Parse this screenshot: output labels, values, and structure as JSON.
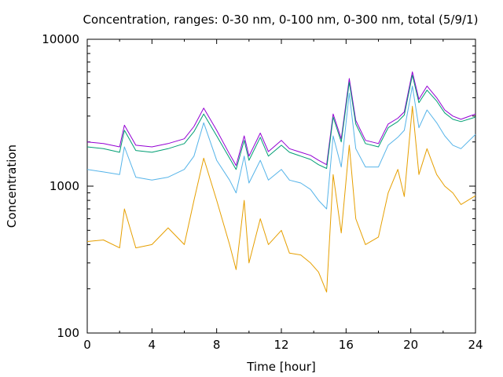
{
  "chart_data": {
    "type": "line",
    "title": "Concentration, ranges: 0-30 nm, 0-100 nm, 0-300 nm, total (5/9/1)",
    "xlabel": "Time [hour]",
    "ylabel": "Concentration",
    "xlim": [
      0,
      24
    ],
    "ylim": [
      100,
      10000
    ],
    "yscale": "log",
    "grid": false,
    "legend": "none",
    "x_ticks": [
      "0",
      "4",
      "8",
      "12",
      "16",
      "20",
      "24"
    ],
    "y_ticks": [
      "100",
      "1000",
      "10000"
    ],
    "x": [
      0,
      1,
      2,
      2.3,
      3,
      4,
      5,
      6,
      6.6,
      7.2,
      8,
      8.8,
      9.2,
      9.7,
      10,
      10.7,
      11.2,
      12,
      12.5,
      13.2,
      13.8,
      14.3,
      14.8,
      15.2,
      15.7,
      16.2,
      16.6,
      17.2,
      18,
      18.6,
      19.2,
      19.6,
      20.1,
      20.5,
      21,
      21.6,
      22.1,
      22.6,
      23.1,
      24
    ],
    "series": [
      {
        "color": "#9400d3",
        "values": [
          2000,
          1950,
          1850,
          2600,
          1900,
          1850,
          1950,
          2100,
          2550,
          3400,
          2400,
          1650,
          1380,
          2200,
          1600,
          2300,
          1720,
          2050,
          1800,
          1700,
          1620,
          1500,
          1400,
          3100,
          2100,
          5400,
          2800,
          2050,
          1950,
          2650,
          2900,
          3200,
          6000,
          3900,
          4800,
          4000,
          3300,
          3000,
          2850,
          3100
        ]
      },
      {
        "color": "#009e73",
        "values": [
          1850,
          1800,
          1700,
          2400,
          1750,
          1700,
          1800,
          1950,
          2350,
          3100,
          2200,
          1550,
          1300,
          2050,
          1500,
          2150,
          1600,
          1900,
          1700,
          1600,
          1520,
          1400,
          1320,
          2950,
          2000,
          5100,
          2650,
          1950,
          1850,
          2500,
          2750,
          3050,
          5700,
          3700,
          4500,
          3800,
          3150,
          2850,
          2750,
          2950
        ]
      },
      {
        "color": "#56b4e9",
        "values": [
          1300,
          1250,
          1200,
          1850,
          1150,
          1100,
          1150,
          1300,
          1600,
          2700,
          1500,
          1100,
          900,
          1600,
          1050,
          1500,
          1100,
          1300,
          1100,
          1050,
          950,
          800,
          700,
          2200,
          1350,
          4300,
          1800,
          1350,
          1350,
          1900,
          2150,
          2400,
          4800,
          2500,
          3300,
          2700,
          2200,
          1900,
          1800,
          2250
        ]
      },
      {
        "color": "#e69f00",
        "values": [
          420,
          430,
          380,
          700,
          380,
          400,
          520,
          400,
          800,
          1550,
          800,
          400,
          270,
          800,
          300,
          600,
          400,
          500,
          350,
          340,
          300,
          260,
          190,
          1200,
          480,
          1900,
          600,
          400,
          450,
          900,
          1300,
          850,
          3500,
          1200,
          1800,
          1200,
          1000,
          900,
          750,
          860
        ]
      }
    ]
  }
}
